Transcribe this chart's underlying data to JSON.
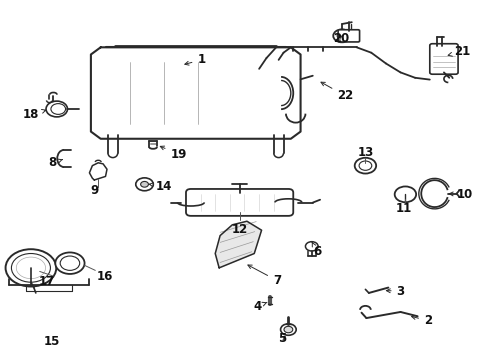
{
  "bg_color": "#ffffff",
  "fig_width": 4.89,
  "fig_height": 3.6,
  "dpi": 100,
  "line_color": "#2a2a2a",
  "label_color": "#111111",
  "label_fontsize": 8.5,
  "label_positions": {
    "1": [
      0.415,
      0.83,
      "right"
    ],
    "2": [
      0.87,
      0.108,
      "left"
    ],
    "3": [
      0.81,
      0.19,
      "left"
    ],
    "4": [
      0.545,
      0.148,
      "right"
    ],
    "5": [
      0.568,
      0.058,
      "left"
    ],
    "6": [
      0.635,
      0.3,
      "left"
    ],
    "7": [
      0.56,
      0.22,
      "left"
    ],
    "8": [
      0.118,
      0.55,
      "right"
    ],
    "9": [
      0.185,
      0.48,
      "center"
    ],
    "10": [
      0.93,
      0.46,
      "left"
    ],
    "11": [
      0.82,
      0.44,
      "center"
    ],
    "12": [
      0.49,
      0.375,
      "center"
    ],
    "13": [
      0.745,
      0.56,
      "center"
    ],
    "14": [
      0.31,
      0.485,
      "left"
    ],
    "15": [
      0.105,
      0.05,
      "center"
    ],
    "16": [
      0.188,
      0.235,
      "left"
    ],
    "17": [
      0.11,
      0.215,
      "right"
    ],
    "18": [
      0.082,
      0.68,
      "right"
    ],
    "19": [
      0.345,
      0.57,
      "left"
    ],
    "20": [
      0.68,
      0.89,
      "left"
    ],
    "21": [
      0.928,
      0.855,
      "left"
    ],
    "22": [
      0.685,
      0.735,
      "left"
    ]
  }
}
